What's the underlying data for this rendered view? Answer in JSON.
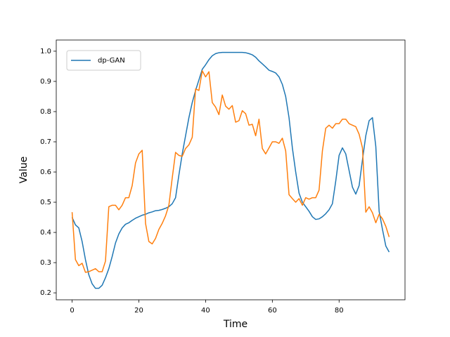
{
  "chart_data": {
    "type": "line",
    "x_label": "Time",
    "y_label": "Value",
    "x": [
      0,
      1,
      2,
      3,
      4,
      5,
      6,
      7,
      8,
      9,
      10,
      11,
      12,
      13,
      14,
      15,
      16,
      17,
      18,
      19,
      20,
      21,
      22,
      23,
      24,
      25,
      26,
      27,
      28,
      29,
      30,
      31,
      32,
      33,
      34,
      35,
      36,
      37,
      38,
      39,
      40,
      41,
      42,
      43,
      44,
      45,
      46,
      47,
      48,
      49,
      50,
      51,
      52,
      53,
      54,
      55,
      56,
      57,
      58,
      59,
      60,
      61,
      62,
      63,
      64,
      65,
      66,
      67,
      68,
      69,
      70,
      71,
      72,
      73,
      74,
      75,
      76,
      77,
      78,
      79,
      80,
      81,
      82,
      83,
      84,
      85,
      86,
      87,
      88,
      89,
      90,
      91,
      92,
      93,
      94,
      95
    ],
    "series": [
      {
        "name": "dp-GAN",
        "color": "#1f77b4",
        "values": [
          0.45,
          0.425,
          0.415,
          0.37,
          0.31,
          0.26,
          0.23,
          0.215,
          0.215,
          0.225,
          0.25,
          0.28,
          0.32,
          0.365,
          0.395,
          0.415,
          0.427,
          0.432,
          0.44,
          0.447,
          0.452,
          0.457,
          0.46,
          0.465,
          0.468,
          0.472,
          0.473,
          0.476,
          0.48,
          0.485,
          0.495,
          0.515,
          0.59,
          0.66,
          0.72,
          0.78,
          0.83,
          0.87,
          0.905,
          0.94,
          0.955,
          0.972,
          0.985,
          0.992,
          0.995,
          0.996,
          0.996,
          0.996,
          0.996,
          0.996,
          0.996,
          0.996,
          0.995,
          0.992,
          0.988,
          0.98,
          0.968,
          0.958,
          0.948,
          0.937,
          0.933,
          0.928,
          0.915,
          0.89,
          0.85,
          0.78,
          0.68,
          0.6,
          0.53,
          0.5,
          0.485,
          0.47,
          0.452,
          0.443,
          0.445,
          0.452,
          0.462,
          0.475,
          0.495,
          0.57,
          0.655,
          0.68,
          0.66,
          0.605,
          0.55,
          0.527,
          0.555,
          0.64,
          0.72,
          0.77,
          0.78,
          0.685,
          0.47,
          0.41,
          0.355,
          0.335
        ]
      },
      {
        "color": "#ff7f0e",
        "values": [
          0.467,
          0.31,
          0.29,
          0.298,
          0.268,
          0.27,
          0.275,
          0.28,
          0.27,
          0.27,
          0.305,
          0.485,
          0.49,
          0.49,
          0.475,
          0.49,
          0.515,
          0.515,
          0.555,
          0.63,
          0.66,
          0.672,
          0.43,
          0.37,
          0.362,
          0.38,
          0.41,
          0.43,
          0.455,
          0.49,
          0.58,
          0.665,
          0.655,
          0.652,
          0.678,
          0.69,
          0.715,
          0.875,
          0.87,
          0.935,
          0.915,
          0.932,
          0.83,
          0.815,
          0.79,
          0.855,
          0.818,
          0.808,
          0.82,
          0.765,
          0.77,
          0.803,
          0.793,
          0.755,
          0.758,
          0.72,
          0.775,
          0.678,
          0.66,
          0.68,
          0.7,
          0.7,
          0.695,
          0.712,
          0.67,
          0.525,
          0.512,
          0.5,
          0.512,
          0.49,
          0.515,
          0.51,
          0.515,
          0.515,
          0.54,
          0.67,
          0.745,
          0.755,
          0.745,
          0.76,
          0.76,
          0.775,
          0.775,
          0.76,
          0.755,
          0.75,
          0.725,
          0.68,
          0.467,
          0.485,
          0.465,
          0.432,
          0.46,
          0.445,
          0.42,
          0.385
        ]
      }
    ],
    "xlim": [
      -4.75,
      99.75
    ],
    "xticks": [
      0,
      20,
      40,
      60,
      80
    ],
    "ylim": [
      0.177,
      1.037
    ],
    "yticks": [
      0.2,
      0.3,
      0.4,
      0.5,
      0.6,
      0.7,
      0.8,
      0.9,
      {
        "value": 1,
        "label": "1.0"
      }
    ],
    "grid": false,
    "legend": "upper left"
  }
}
